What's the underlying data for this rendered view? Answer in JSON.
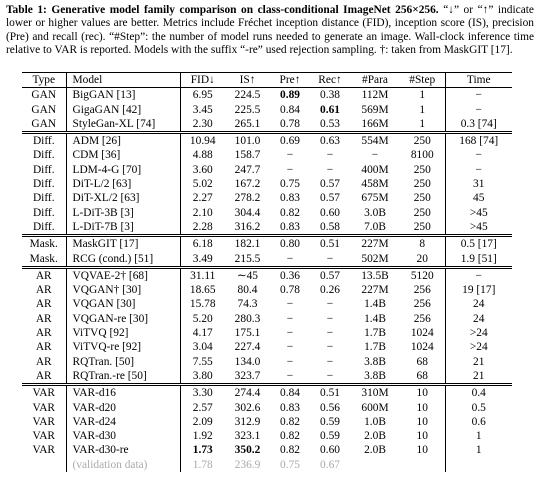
{
  "caption": {
    "label": "Table 1:",
    "title": "Generative model family comparison on class-conditional ImageNet 256×256.",
    "text": "“↓” or “↑” indicate lower or higher values are better. Metrics include Fréchet inception distance (FID), inception score (IS), precision (Pre) and recall (rec). “#Step”: the number of model runs needed to generate an image. Wall-clock inference time relative to VAR is reported. Models with the suffix “-re” used rejection sampling. †: taken from MaskGIT [17]."
  },
  "table": {
    "header": [
      "Type",
      "Model",
      "FID↓",
      "IS↑",
      "Pre↑",
      "Rec↑",
      "#Para",
      "#Step",
      "Time"
    ],
    "groups": [
      [
        [
          "GAN",
          "BigGAN [13]",
          "6.95",
          "224.5",
          "0.89",
          "0.38",
          "112M",
          "1",
          "−"
        ],
        [
          "GAN",
          "GigaGAN [42]",
          "3.45",
          "225.5",
          "0.84",
          "0.61",
          "569M",
          "1",
          "−"
        ],
        [
          "GAN",
          "StyleGan-XL [74]",
          "2.30",
          "265.1",
          "0.78",
          "0.53",
          "166M",
          "1",
          "0.3 [74]"
        ]
      ],
      [
        [
          "Diff.",
          "ADM [26]",
          "10.94",
          "101.0",
          "0.69",
          "0.63",
          "554M",
          "250",
          "168 [74]"
        ],
        [
          "Diff.",
          "CDM [36]",
          "4.88",
          "158.7",
          "−",
          "−",
          "−",
          "8100",
          "−"
        ],
        [
          "Diff.",
          "LDM-4-G [70]",
          "3.60",
          "247.7",
          "−",
          "−",
          "400M",
          "250",
          "−"
        ],
        [
          "Diff.",
          "DiT-L/2 [63]",
          "5.02",
          "167.2",
          "0.75",
          "0.57",
          "458M",
          "250",
          "31"
        ],
        [
          "Diff.",
          "DiT-XL/2 [63]",
          "2.27",
          "278.2",
          "0.83",
          "0.57",
          "675M",
          "250",
          "45"
        ],
        [
          "Diff.",
          "L-DiT-3B [3]",
          "2.10",
          "304.4",
          "0.82",
          "0.60",
          "3.0B",
          "250",
          ">45"
        ],
        [
          "Diff.",
          "L-DiT-7B [3]",
          "2.28",
          "316.2",
          "0.83",
          "0.58",
          "7.0B",
          "250",
          ">45"
        ]
      ],
      [
        [
          "Mask.",
          "MaskGIT [17]",
          "6.18",
          "182.1",
          "0.80",
          "0.51",
          "227M",
          "8",
          "0.5 [17]"
        ],
        [
          "Mask.",
          "RCG (cond.) [51]",
          "3.49",
          "215.5",
          "−",
          "−",
          "502M",
          "20",
          "1.9 [51]"
        ]
      ],
      [
        [
          "AR",
          "VQVAE-2† [68]",
          "31.11",
          "∼45",
          "0.36",
          "0.57",
          "13.5B",
          "5120",
          "−"
        ],
        [
          "AR",
          "VQGAN† [30]",
          "18.65",
          "80.4",
          "0.78",
          "0.26",
          "227M",
          "256",
          "19 [17]"
        ],
        [
          "AR",
          "VQGAN [30]",
          "15.78",
          "74.3",
          "−",
          "−",
          "1.4B",
          "256",
          "24"
        ],
        [
          "AR",
          "VQGAN-re [30]",
          "5.20",
          "280.3",
          "−",
          "−",
          "1.4B",
          "256",
          "24"
        ],
        [
          "AR",
          "ViTVQ [92]",
          "4.17",
          "175.1",
          "−",
          "−",
          "1.7B",
          "1024",
          ">24"
        ],
        [
          "AR",
          "ViTVQ-re [92]",
          "3.04",
          "227.4",
          "−",
          "−",
          "1.7B",
          "1024",
          ">24"
        ],
        [
          "AR",
          "RQTran. [50]",
          "7.55",
          "134.0",
          "−",
          "−",
          "3.8B",
          "68",
          "21"
        ],
        [
          "AR",
          "RQTran.-re [50]",
          "3.80",
          "323.7",
          "−",
          "−",
          "3.8B",
          "68",
          "21"
        ]
      ],
      [
        [
          "VAR",
          "VAR-d16",
          "3.30",
          "274.4",
          "0.84",
          "0.51",
          "310M",
          "10",
          "0.4"
        ],
        [
          "VAR",
          "VAR-d20",
          "2.57",
          "302.6",
          "0.83",
          "0.56",
          "600M",
          "10",
          "0.5"
        ],
        [
          "VAR",
          "VAR-d24",
          "2.09",
          "312.9",
          "0.82",
          "0.59",
          "1.0B",
          "10",
          "0.6"
        ],
        [
          "VAR",
          "VAR-d30",
          "1.92",
          "323.1",
          "0.82",
          "0.59",
          "2.0B",
          "10",
          "1"
        ],
        [
          "VAR",
          "VAR-d30-re",
          "1.73",
          "350.2",
          "0.82",
          "0.60",
          "2.0B",
          "10",
          "1"
        ],
        [
          "",
          "(validation data)",
          "1.78",
          "236.9",
          "0.75",
          "0.67",
          "",
          "",
          ""
        ]
      ]
    ]
  }
}
